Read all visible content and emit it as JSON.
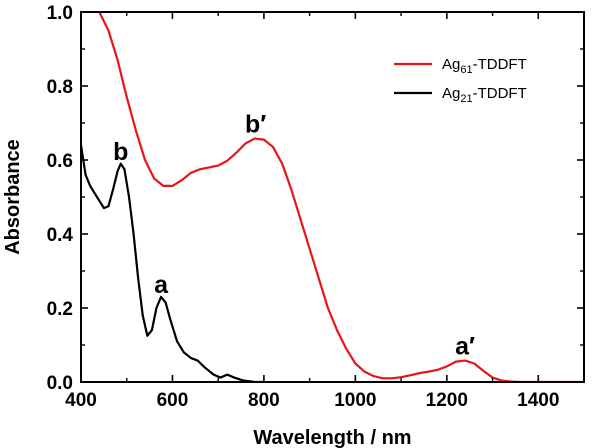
{
  "chart_data": {
    "type": "line",
    "title": "",
    "xlabel": "Wavelength / nm",
    "ylabel": "Absorbance",
    "xlim": [
      400,
      1500
    ],
    "ylim": [
      0,
      1.0
    ],
    "xticks": [
      400,
      600,
      800,
      1000,
      1200,
      1400
    ],
    "yticks": [
      0.0,
      0.2,
      0.4,
      0.6,
      0.8,
      1.0
    ],
    "xtick_labels": [
      "400",
      "600",
      "800",
      "1000",
      "1200",
      "1400"
    ],
    "ytick_labels": [
      "0.0",
      "0.2",
      "0.4",
      "0.6",
      "0.8",
      "1.0"
    ],
    "grid": false,
    "legend_position": "top-right",
    "series": [
      {
        "name": "Ag61-TDDFT",
        "legend_main": "Ag",
        "legend_sub": "61",
        "legend_tail": "-TDDFT",
        "color": "#e8141b",
        "points": [
          [
            440,
            1.0
          ],
          [
            460,
            0.95
          ],
          [
            480,
            0.87
          ],
          [
            500,
            0.77
          ],
          [
            520,
            0.68
          ],
          [
            540,
            0.6
          ],
          [
            560,
            0.55
          ],
          [
            580,
            0.53
          ],
          [
            600,
            0.53
          ],
          [
            620,
            0.545
          ],
          [
            640,
            0.565
          ],
          [
            660,
            0.575
          ],
          [
            680,
            0.58
          ],
          [
            700,
            0.585
          ],
          [
            720,
            0.598
          ],
          [
            740,
            0.62
          ],
          [
            760,
            0.645
          ],
          [
            780,
            0.658
          ],
          [
            800,
            0.655
          ],
          [
            820,
            0.635
          ],
          [
            840,
            0.59
          ],
          [
            860,
            0.52
          ],
          [
            880,
            0.44
          ],
          [
            900,
            0.36
          ],
          [
            920,
            0.28
          ],
          [
            940,
            0.2
          ],
          [
            960,
            0.14
          ],
          [
            980,
            0.09
          ],
          [
            1000,
            0.05
          ],
          [
            1020,
            0.028
          ],
          [
            1040,
            0.016
          ],
          [
            1060,
            0.01
          ],
          [
            1080,
            0.01
          ],
          [
            1100,
            0.013
          ],
          [
            1120,
            0.018
          ],
          [
            1140,
            0.024
          ],
          [
            1160,
            0.028
          ],
          [
            1180,
            0.033
          ],
          [
            1200,
            0.042
          ],
          [
            1220,
            0.055
          ],
          [
            1240,
            0.058
          ],
          [
            1260,
            0.05
          ],
          [
            1280,
            0.03
          ],
          [
            1300,
            0.012
          ],
          [
            1320,
            0.004
          ],
          [
            1340,
            0.001
          ],
          [
            1360,
            0.0
          ],
          [
            1400,
            0.0
          ],
          [
            1500,
            0.0
          ]
        ]
      },
      {
        "name": "Ag21-TDDFT",
        "legend_main": "Ag",
        "legend_sub": "21",
        "legend_tail": "-TDDFT",
        "color": "#000000",
        "points": [
          [
            400,
            0.64
          ],
          [
            410,
            0.56
          ],
          [
            420,
            0.53
          ],
          [
            430,
            0.51
          ],
          [
            440,
            0.49
          ],
          [
            450,
            0.47
          ],
          [
            460,
            0.475
          ],
          [
            470,
            0.52
          ],
          [
            480,
            0.57
          ],
          [
            487,
            0.59
          ],
          [
            495,
            0.575
          ],
          [
            505,
            0.5
          ],
          [
            515,
            0.4
          ],
          [
            525,
            0.28
          ],
          [
            535,
            0.18
          ],
          [
            545,
            0.125
          ],
          [
            555,
            0.14
          ],
          [
            565,
            0.2
          ],
          [
            575,
            0.23
          ],
          [
            585,
            0.215
          ],
          [
            595,
            0.17
          ],
          [
            610,
            0.11
          ],
          [
            625,
            0.08
          ],
          [
            640,
            0.065
          ],
          [
            655,
            0.058
          ],
          [
            670,
            0.04
          ],
          [
            690,
            0.02
          ],
          [
            705,
            0.012
          ],
          [
            720,
            0.02
          ],
          [
            735,
            0.012
          ],
          [
            755,
            0.004
          ],
          [
            780,
            0.0
          ],
          [
            800,
            0.0
          ]
        ]
      }
    ],
    "annotations": [
      {
        "text": "b",
        "x": 487,
        "y": 0.6
      },
      {
        "text": "a",
        "x": 575,
        "y": 0.24
      },
      {
        "text": "b′",
        "x": 782,
        "y": 0.675
      },
      {
        "text": "a′",
        "x": 1240,
        "y": 0.075
      }
    ]
  }
}
